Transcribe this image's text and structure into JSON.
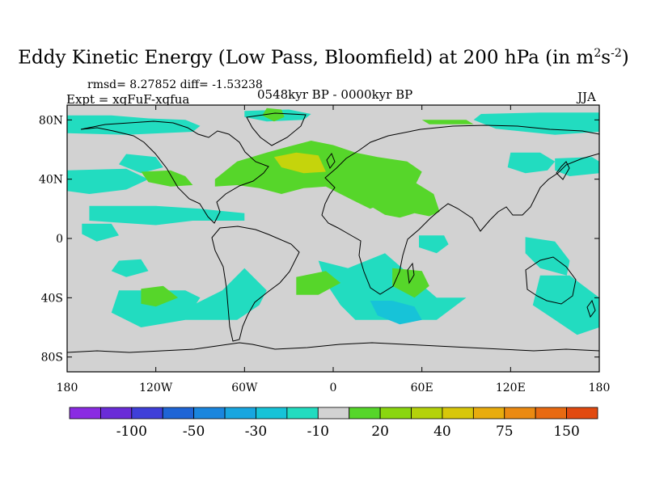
{
  "chart_data": {
    "type": "heatmap",
    "title_prefix": "Eddy Kinetic Energy (Low Pass, Bloomfield) at 200 hPa (in m",
    "title_sup1": "2",
    "title_mid": "s",
    "title_sup2": "-2",
    "title_suffix": ")",
    "stats": "rmsd= 8.27852 diff= -1.53238",
    "period": "0548kyr BP - 0000kyr BP",
    "experiment": "Expt = xqFuF-xqfua",
    "season": "JJA",
    "xlim": [
      -180,
      180
    ],
    "ylim": [
      -90,
      90
    ],
    "x_ticks": [
      {
        "value": -180,
        "label": "180"
      },
      {
        "value": -120,
        "label": "120W"
      },
      {
        "value": -60,
        "label": "60W"
      },
      {
        "value": 0,
        "label": "0"
      },
      {
        "value": 60,
        "label": "60E"
      },
      {
        "value": 120,
        "label": "120E"
      },
      {
        "value": 180,
        "label": "180"
      }
    ],
    "y_ticks": [
      {
        "value": 80,
        "label": "80N"
      },
      {
        "value": 40,
        "label": "40N"
      },
      {
        "value": 0,
        "label": "0"
      },
      {
        "value": -40,
        "label": "40S"
      },
      {
        "value": -80,
        "label": "80S"
      }
    ],
    "colorbar": {
      "colors": [
        "#8a2be2",
        "#6a2cd8",
        "#3f3fd9",
        "#1f65d6",
        "#1a86de",
        "#18a6e0",
        "#17c3d8",
        "#22dcc0",
        "#d2d2d2",
        "#56d62a",
        "#8ad60f",
        "#b4d20a",
        "#d8c70a",
        "#e8ac0d",
        "#eb8a12",
        "#e86a12",
        "#e14a10"
      ],
      "labels": [
        {
          "after_box": 2,
          "text": "-100"
        },
        {
          "after_box": 4,
          "text": "-50"
        },
        {
          "after_box": 6,
          "text": "-30"
        },
        {
          "after_box": 8,
          "text": "-10"
        },
        {
          "after_box": 10,
          "text": "20"
        },
        {
          "after_box": 12,
          "text": "40"
        },
        {
          "after_box": 14,
          "text": "75"
        },
        {
          "after_box": 16,
          "text": "150"
        }
      ]
    },
    "background_value": 0,
    "anomaly_regions": [
      {
        "name": "arctic-pacific",
        "value": -15,
        "lon": [
          -180,
          -150,
          -125,
          -100,
          -90,
          -95,
          -140,
          -180
        ],
        "lat": [
          83,
          83,
          81,
          80,
          76,
          72,
          70,
          71
        ]
      },
      {
        "name": "canada-arctic",
        "value": -15,
        "lon": [
          -60,
          -30,
          -15,
          -20,
          -45,
          -60
        ],
        "lat": [
          86,
          87,
          84,
          80,
          79,
          82
        ]
      },
      {
        "name": "siberia-arctic",
        "value": -15,
        "lon": [
          100,
          140,
          180,
          180,
          150,
          110,
          95
        ],
        "lat": [
          84,
          85,
          85,
          72,
          70,
          74,
          80
        ]
      },
      {
        "name": "north-pacific-small",
        "value": -15,
        "lon": [
          -140,
          -120,
          -115,
          -130,
          -145
        ],
        "lat": [
          57,
          55,
          48,
          44,
          50
        ]
      },
      {
        "name": "greenland-green",
        "value": 15,
        "lon": [
          -45,
          -35,
          -33,
          -40,
          -48
        ],
        "lat": [
          88,
          87,
          82,
          79,
          83
        ]
      },
      {
        "name": "russia-green",
        "value": 15,
        "lon": [
          60,
          90,
          95,
          65
        ],
        "lat": [
          80,
          80,
          77,
          77
        ]
      },
      {
        "name": "north-atlantic-europe",
        "value": 20,
        "lon": [
          -80,
          -65,
          -45,
          -30,
          -15,
          0,
          15,
          30,
          50,
          60,
          55,
          45,
          35,
          25,
          15,
          5,
          -5,
          -20,
          -35,
          -50,
          -65,
          -80
        ],
        "lat": [
          40,
          52,
          58,
          62,
          66,
          63,
          58,
          55,
          52,
          45,
          35,
          28,
          24,
          20,
          25,
          30,
          35,
          34,
          30,
          34,
          36,
          35
        ]
      },
      {
        "name": "north-atlantic-core",
        "value": 40,
        "lon": [
          -40,
          -25,
          -10,
          -5,
          -20,
          -35
        ],
        "lat": [
          55,
          58,
          56,
          45,
          44,
          48
        ]
      },
      {
        "name": "middle-east-green",
        "value": 20,
        "lon": [
          20,
          40,
          55,
          68,
          72,
          65,
          55,
          45,
          35,
          25
        ],
        "lat": [
          38,
          40,
          38,
          30,
          18,
          15,
          17,
          14,
          16,
          22
        ]
      },
      {
        "name": "east-asia-cyan",
        "value": -15,
        "lon": [
          120,
          140,
          150,
          145,
          130,
          118
        ],
        "lat": [
          58,
          58,
          52,
          46,
          44,
          48
        ]
      },
      {
        "name": "north-pacific-east",
        "value": -15,
        "lon": [
          150,
          175,
          180,
          180,
          160,
          150
        ],
        "lat": [
          54,
          55,
          52,
          44,
          42,
          46
        ]
      },
      {
        "name": "west-pacific-cyan",
        "value": -15,
        "lon": [
          -180,
          -140,
          -125,
          -140,
          -165,
          -180
        ],
        "lat": [
          46,
          47,
          40,
          33,
          30,
          32
        ]
      },
      {
        "name": "us-green",
        "value": 20,
        "lon": [
          -130,
          -110,
          -100,
          -95,
          -110,
          -125
        ],
        "lat": [
          45,
          46,
          42,
          36,
          35,
          38
        ]
      },
      {
        "name": "tropical-pacific",
        "value": -15,
        "lon": [
          -165,
          -120,
          -90,
          -60,
          -60,
          -95,
          -120,
          -165
        ],
        "lat": [
          22,
          22,
          20,
          17,
          12,
          12,
          9,
          12
        ]
      },
      {
        "name": "pacific-small",
        "value": -15,
        "lon": [
          -170,
          -150,
          -145,
          -160,
          -170
        ],
        "lat": [
          10,
          10,
          2,
          -2,
          3
        ]
      },
      {
        "name": "africa-east",
        "value": -15,
        "lon": [
          58,
          75,
          78,
          70,
          58
        ],
        "lat": [
          2,
          2,
          -4,
          -10,
          -6
        ]
      },
      {
        "name": "indian-ocean-east",
        "value": -15,
        "lon": [
          130,
          150,
          160,
          158,
          140,
          130
        ],
        "lat": [
          1,
          -2,
          -15,
          -25,
          -20,
          -10
        ]
      },
      {
        "name": "australia-cyan",
        "value": -15,
        "lon": [
          140,
          160,
          180,
          180,
          165,
          150,
          135
        ],
        "lat": [
          -25,
          -25,
          -40,
          -60,
          -65,
          -55,
          -45
        ]
      },
      {
        "name": "southern-pacific",
        "value": -15,
        "lon": [
          -145,
          -100,
          -90,
          -100,
          -130,
          -150
        ],
        "lat": [
          -35,
          -35,
          -40,
          -55,
          -60,
          -50
        ]
      },
      {
        "name": "south-america-south",
        "value": -15,
        "lon": [
          -100,
          -65,
          -50,
          -45,
          -60,
          -75,
          -95,
          -100
        ],
        "lat": [
          -55,
          -55,
          -45,
          -35,
          -20,
          -35,
          -45,
          -50
        ]
      },
      {
        "name": "south-atlantic-indian",
        "value": -15,
        "lon": [
          -10,
          10,
          35,
          70,
          90,
          70,
          50,
          30,
          15,
          5,
          -5
        ],
        "lat": [
          -15,
          -20,
          -10,
          -40,
          -40,
          -55,
          -55,
          -55,
          -55,
          -45,
          -30
        ]
      },
      {
        "name": "south-indian-deep",
        "value": -30,
        "lon": [
          25,
          40,
          55,
          60,
          45,
          30
        ],
        "lat": [
          -42,
          -42,
          -46,
          -55,
          -58,
          -52
        ]
      },
      {
        "name": "pacific-green",
        "value": 20,
        "lon": [
          -130,
          -115,
          -105,
          -120,
          -130
        ],
        "lat": [
          -34,
          -32,
          -40,
          -46,
          -44
        ]
      },
      {
        "name": "atlantic-green",
        "value": 20,
        "lon": [
          -25,
          -5,
          5,
          -10,
          -25
        ],
        "lat": [
          -26,
          -22,
          -30,
          -38,
          -38
        ]
      },
      {
        "name": "indian-green",
        "value": 20,
        "lon": [
          40,
          60,
          65,
          55,
          40
        ],
        "lat": [
          -20,
          -22,
          -32,
          -40,
          -32
        ]
      },
      {
        "name": "southern-small",
        "value": -15,
        "lon": [
          -145,
          -130,
          -125,
          -140,
          -150
        ],
        "lat": [
          -15,
          -14,
          -22,
          -26,
          -22
        ]
      }
    ]
  }
}
